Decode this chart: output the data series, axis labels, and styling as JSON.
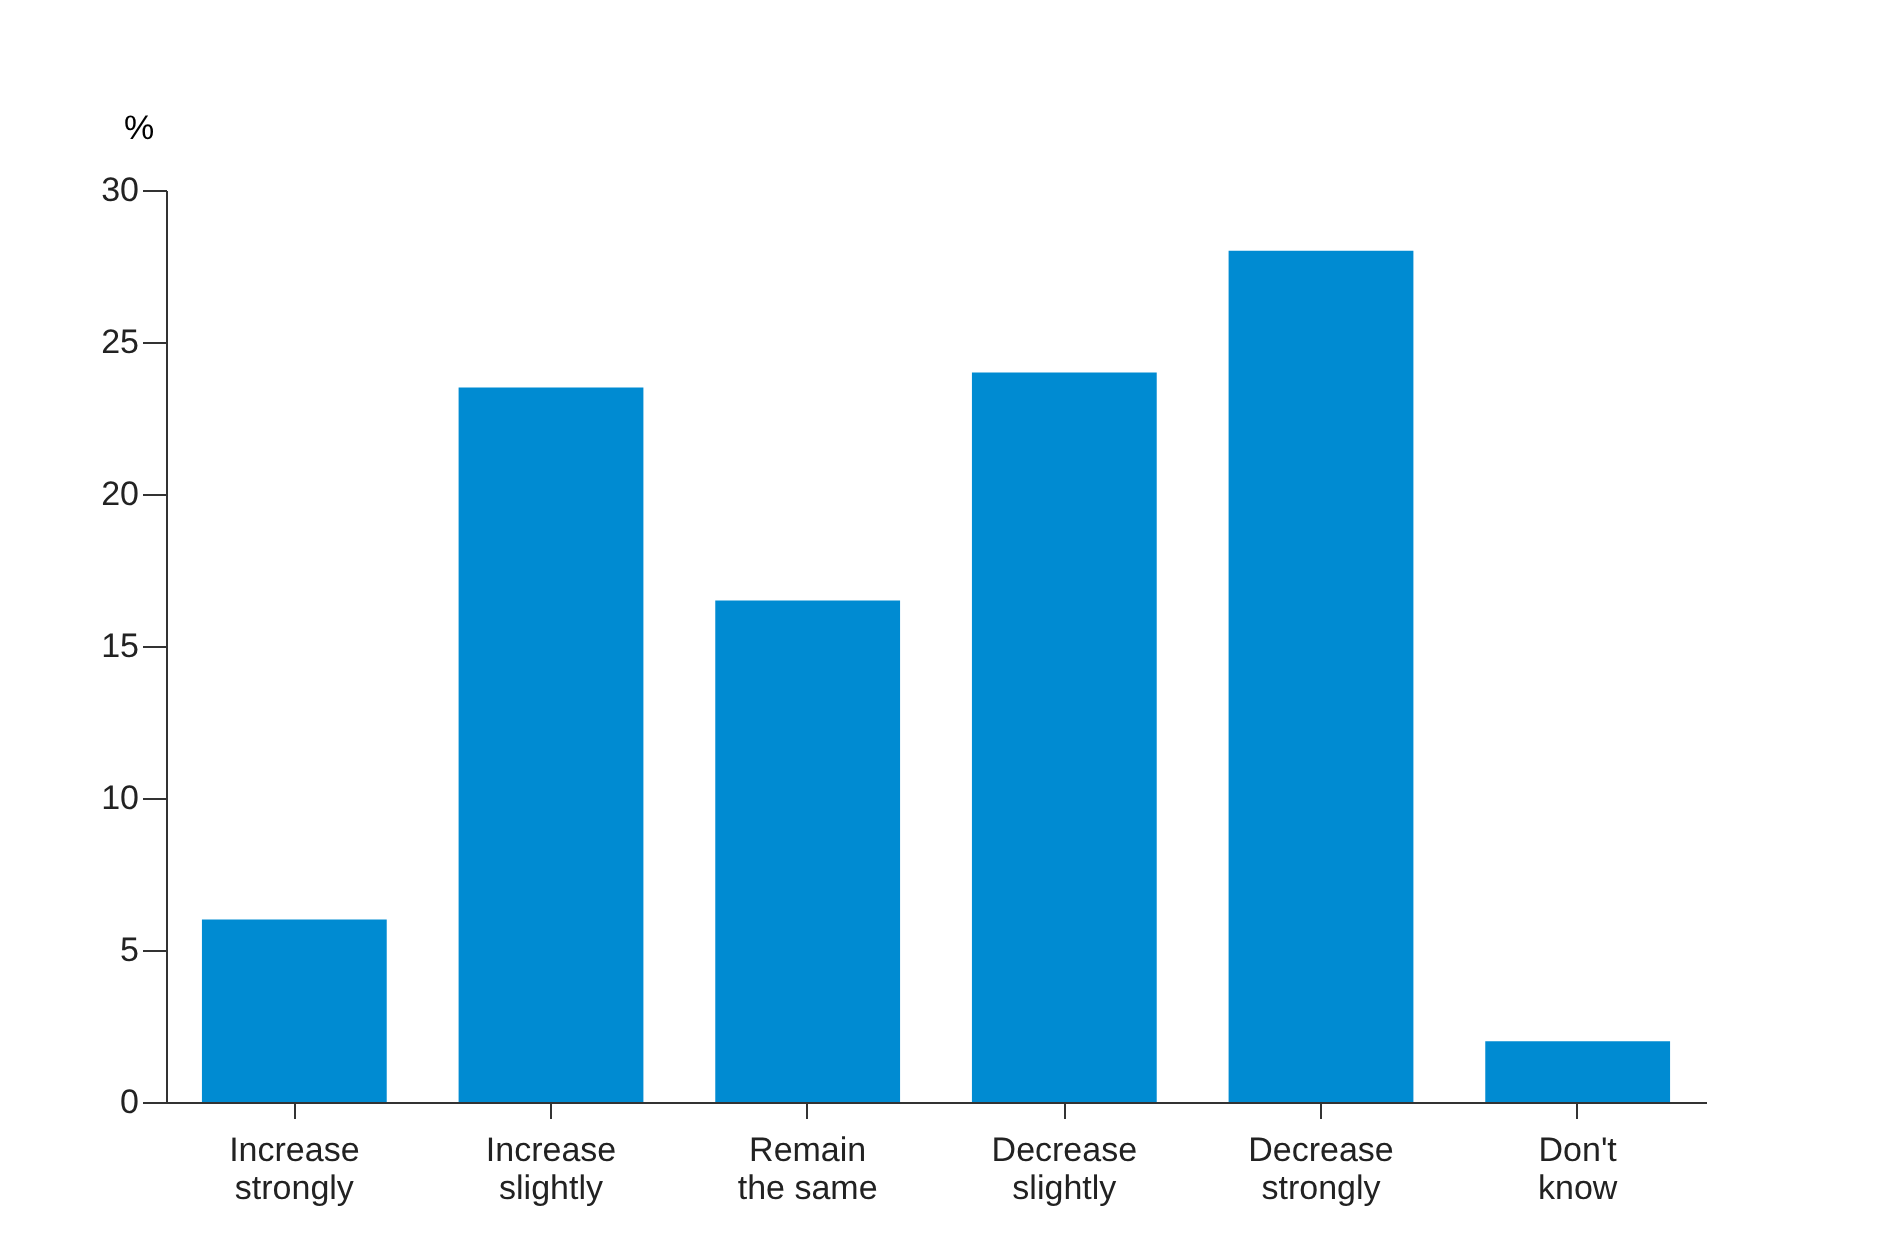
{
  "chart_data": {
    "type": "bar",
    "ylabel": "%",
    "categories": [
      "Increase strongly",
      "Increase slightly",
      "Remain the same",
      "Decrease slightly",
      "Decrease strongly",
      "Don't know"
    ],
    "values": [
      6,
      23.5,
      16.5,
      24,
      28,
      2
    ],
    "color": "#008bd2",
    "ylim": [
      0,
      30
    ],
    "yticks": [
      0,
      5,
      10,
      15,
      20,
      25,
      30
    ],
    "grid": false
  }
}
